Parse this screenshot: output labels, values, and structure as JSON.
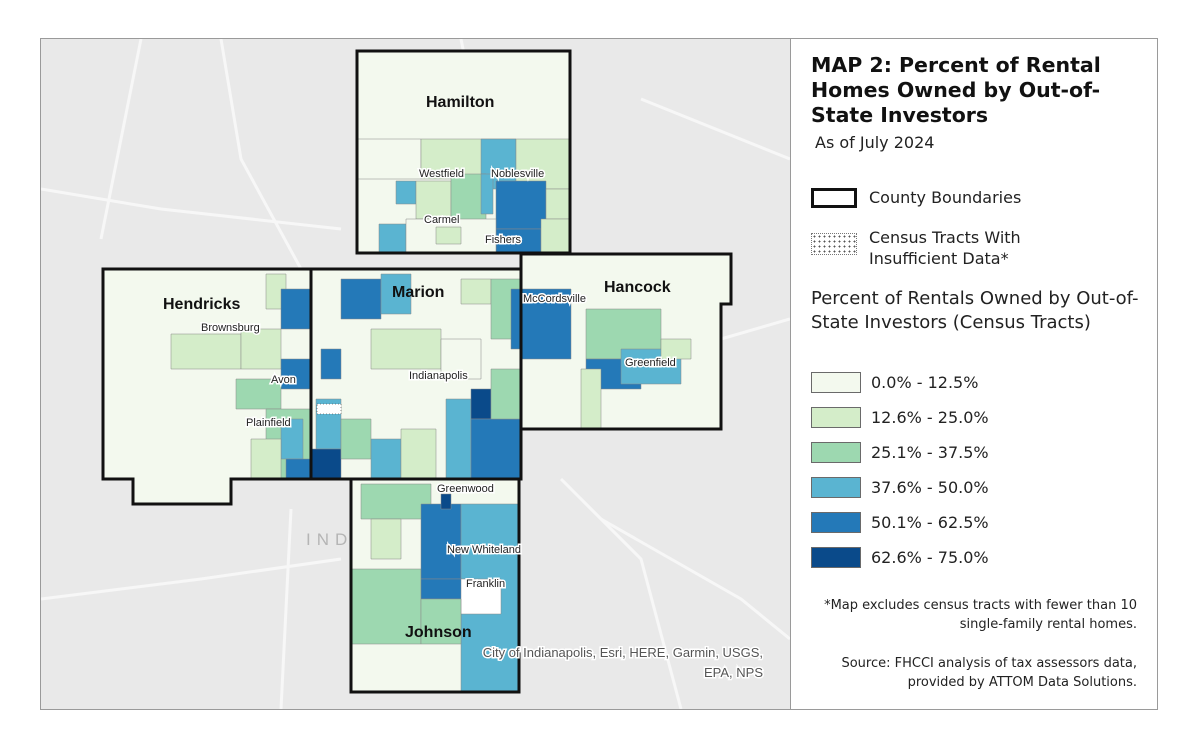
{
  "map": {
    "counties": [
      {
        "name": "Hamilton"
      },
      {
        "name": "Marion"
      },
      {
        "name": "Hendricks"
      },
      {
        "name": "Hancock"
      },
      {
        "name": "Johnson"
      }
    ],
    "places": [
      "Westfield",
      "Noblesville",
      "Carmel",
      "Fishers",
      "Brownsburg",
      "McCordsville",
      "Avon",
      "Indianapolis",
      "Greenfield",
      "Plainfield",
      "Greenwood",
      "New Whiteland",
      "Franklin"
    ],
    "basemap_label": "IND",
    "attribution_line1": "City of Indianapolis, Esri, HERE, Garmin, USGS,",
    "attribution_line2": "EPA, NPS",
    "colors": {
      "basemap": "#e9e9e9",
      "county_border": "#111111",
      "class1": "#f3f9ee",
      "class2": "#d4edc9",
      "class3": "#9dd8b0",
      "class4": "#5ab4d1",
      "class5": "#2479b8",
      "class6": "#0a4a8a"
    }
  },
  "legend": {
    "title": "MAP 2: Percent of Rental Homes Owned by Out-of-State Investors",
    "subtitle": "As of July 2024",
    "county_boundaries": "County Boundaries",
    "insufficient_data": "Census Tracts With Insufficient Data*",
    "section_title": "Percent of Rentals Owned by Out-of-State Investors (Census Tracts)",
    "classes": [
      {
        "label": "0.0% - 12.5%",
        "color": "#f3f9ee"
      },
      {
        "label": "12.6% - 25.0%",
        "color": "#d4edc9"
      },
      {
        "label": "25.1% - 37.5%",
        "color": "#9dd8b0"
      },
      {
        "label": "37.6% - 50.0%",
        "color": "#5ab4d1"
      },
      {
        "label": "50.1% - 62.5%",
        "color": "#2479b8"
      },
      {
        "label": "62.6% - 75.0%",
        "color": "#0a4a8a"
      }
    ],
    "footnote": "*Map excludes census tracts with fewer than 10 single-family rental homes.",
    "source": "Source: FHCCI analysis of tax assessors data, provided by ATTOM Data Solutions."
  }
}
